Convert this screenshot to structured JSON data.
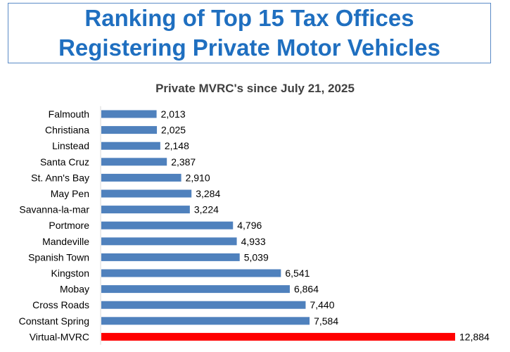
{
  "page_title": "Ranking of Top 15 Tax Offices Registering Private Motor Vehicles",
  "chart_data": {
    "type": "bar",
    "orientation": "horizontal",
    "title": "Private MVRC's since July 21, 2025",
    "xlabel": "",
    "ylabel": "",
    "xlim": [
      0,
      13000
    ],
    "grid": false,
    "categories": [
      "Falmouth",
      "Christiana",
      "Linstead",
      "Santa Cruz",
      "St. Ann's Bay",
      "May Pen",
      "Savanna-la-mar",
      "Portmore",
      "Mandeville",
      "Spanish Town",
      "Kingston",
      "Mobay",
      "Cross Roads",
      "Constant Spring",
      "Virtual-MVRC"
    ],
    "values": [
      2013,
      2025,
      2148,
      2387,
      2910,
      3284,
      3224,
      4796,
      4933,
      5039,
      6541,
      6864,
      7440,
      7584,
      12884
    ],
    "value_labels": [
      "2,013",
      "2,025",
      "2,148",
      "2,387",
      "2,910",
      "3,284",
      "3,224",
      "4,796",
      "4,933",
      "5,039",
      "6,541",
      "6,864",
      "7,440",
      "7,584",
      "12,884"
    ],
    "colors": {
      "default_bar": "#4f81bd",
      "highlight_bar": "#ff0000",
      "highlight_category": "Virtual-MVRC",
      "axis": "#d9d9d9"
    }
  }
}
